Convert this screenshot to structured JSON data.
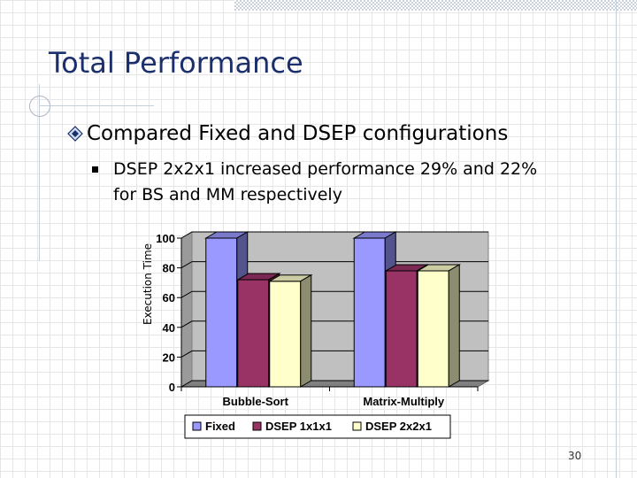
{
  "slide": {
    "title": "Total Performance",
    "bullet1": "Compared Fixed and DSEP configurations",
    "bullet2_line1": "DSEP 2x2x1 increased performance 29% and 22%",
    "bullet2_line2": "for BS and MM respectively",
    "page_number": "30"
  },
  "colors": {
    "title": "#1a2f6b",
    "fixed": "#9999ff",
    "dsep_1x1x1": "#993366",
    "dsep_2x2x1": "#ffffcc",
    "plot_bg": "#c0c0c0"
  },
  "chart_data": {
    "type": "bar",
    "style": "3d-clustered",
    "categories": [
      "Bubble-Sort",
      "Matrix-Multiply"
    ],
    "series": [
      {
        "name": "Fixed",
        "color": "#9999ff",
        "values": [
          100,
          100
        ]
      },
      {
        "name": "DSEP 1x1x1",
        "color": "#993366",
        "values": [
          72,
          78
        ]
      },
      {
        "name": "DSEP 2x2x1",
        "color": "#ffffcc",
        "values": [
          71,
          78
        ]
      }
    ],
    "title": "",
    "xlabel": "",
    "ylabel": "Execution Time",
    "ylim": [
      0,
      100
    ],
    "yticks": [
      "0",
      "20",
      "40",
      "60",
      "80",
      "100"
    ],
    "grid": true,
    "legend": "bottom"
  }
}
